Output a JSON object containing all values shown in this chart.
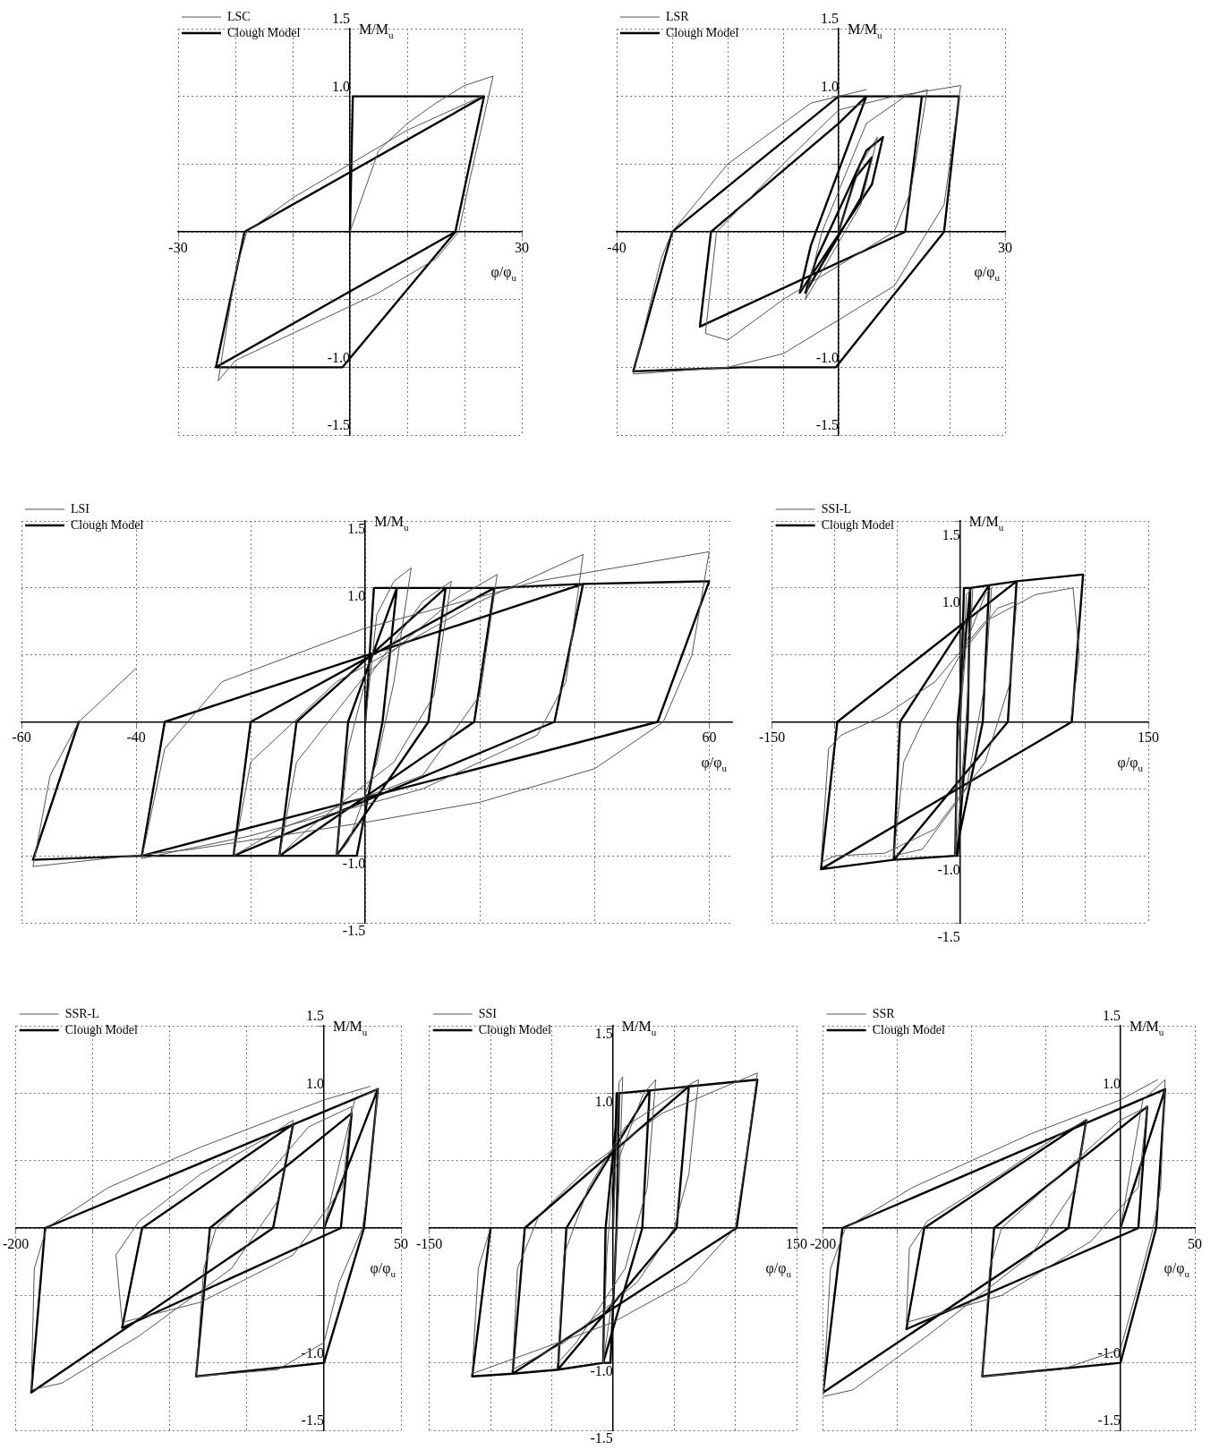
{
  "chart_data": [
    {
      "type": "line",
      "xlabel": "φ/φ$_{u}$",
      "ylabel": "M/M$_{u}$",
      "legend": "top left",
      "grid": true,
      "xlim": [
        -30,
        30
      ],
      "ylim": [
        -1.5,
        1.5
      ],
      "xticks": [
        {
          "value": -30,
          "label": "-30"
        },
        {
          "value": -20,
          "label": null
        },
        {
          "value": -10,
          "label": null
        },
        {
          "value": 0,
          "label": null
        },
        {
          "value": 10,
          "label": null
        },
        {
          "value": 20,
          "label": null
        },
        {
          "value": 30,
          "label": "30"
        }
      ],
      "yticks": [
        {
          "value": -1.5,
          "label": "-1.5"
        },
        {
          "value": -1,
          "label": "-1.0"
        },
        {
          "value": -0.5,
          "label": null
        },
        {
          "value": 0,
          "label": null
        },
        {
          "value": 0.5,
          "label": null
        },
        {
          "value": 1,
          "label": "1.0"
        },
        {
          "value": 1.5,
          "label": "1.5"
        }
      ],
      "series": [
        {
          "name": "LSC",
          "color": "#555555",
          "x": [
            0,
            5,
            10,
            15,
            20,
            25,
            21,
            19,
            15,
            5,
            0,
            -10,
            -20,
            -23,
            -20,
            -18,
            -10,
            0,
            10,
            23
          ],
          "values": [
            0,
            0.6,
            0.8,
            0.95,
            1.08,
            1.15,
            0.4,
            0,
            -0.2,
            -0.45,
            -0.55,
            -0.75,
            -0.95,
            -1.1,
            -0.3,
            0,
            0.25,
            0.5,
            0.75,
            1.0
          ]
        },
        {
          "name": "Clough Model",
          "color": "#000000",
          "x": [
            0,
            0.5,
            23.4,
            18.4,
            -1.3,
            -23.4,
            -18.4,
            23.4,
            18.4,
            -23.4
          ],
          "values": [
            0,
            1,
            1,
            0,
            -1,
            -1,
            0,
            1,
            0,
            -1
          ]
        }
      ]
    },
    {
      "type": "line",
      "xlabel": "φ/φ$_{u}$",
      "ylabel": "M/M$_{u}$",
      "legend": "top left",
      "grid": true,
      "xlim": [
        -40,
        30
      ],
      "ylim": [
        -1.5,
        1.5
      ],
      "xticks": [
        {
          "value": -40,
          "label": "-40"
        },
        {
          "value": -30,
          "label": null
        },
        {
          "value": -20,
          "label": null
        },
        {
          "value": -10,
          "label": null
        },
        {
          "value": 0,
          "label": null
        },
        {
          "value": 10,
          "label": null
        },
        {
          "value": 20,
          "label": null
        },
        {
          "value": 30,
          "label": "30"
        }
      ],
      "yticks": [
        {
          "value": -1.5,
          "label": "-1.5"
        },
        {
          "value": -1,
          "label": "-1.0"
        },
        {
          "value": -0.5,
          "label": null
        },
        {
          "value": 0,
          "label": null
        },
        {
          "value": 0.5,
          "label": null
        },
        {
          "value": 1,
          "label": "1.0"
        },
        {
          "value": 1.5,
          "label": "1.5"
        }
      ],
      "series": [
        {
          "name": "LSR",
          "color": "#555555",
          "x": [
            0,
            4,
            7,
            4,
            -6,
            -3,
            5,
            12,
            16,
            13,
            10,
            -10,
            -20,
            -24,
            -22,
            -10,
            0,
            10,
            22,
            19,
            10,
            -10,
            -20,
            -37,
            -32,
            -30,
            -20,
            -5,
            5
          ],
          "values": [
            0,
            0.5,
            0.7,
            0.2,
            -0.5,
            0,
            0.8,
            1,
            1.05,
            0.3,
            0,
            -0.5,
            -0.8,
            -0.75,
            0,
            0.5,
            0.9,
            1,
            1.08,
            0.2,
            -0.4,
            -0.9,
            -1,
            -1.05,
            -0.2,
            0,
            0.5,
            0.95,
            1.05
          ]
        },
        {
          "name": "Clough Model",
          "color": "#000000",
          "x": [
            0,
            3,
            6,
            4,
            -6,
            -4,
            5,
            8,
            6,
            -7,
            -5,
            5,
            15,
            12,
            -25,
            -23,
            0,
            5,
            21.7,
            19,
            -0.5,
            -17.5,
            -37,
            -30,
            0,
            21.7
          ],
          "values": [
            0,
            0.4,
            0.55,
            0.25,
            -0.45,
            -0.2,
            0.6,
            0.7,
            0.35,
            -0.45,
            -0.1,
            1,
            1,
            0,
            -0.7,
            0,
            0.8,
            1,
            1,
            0,
            -1,
            -1,
            -1.03,
            0,
            1,
            1
          ]
        }
      ]
    },
    {
      "type": "line",
      "xlabel": "φ/φ$_{u}$",
      "ylabel": "M/M$_{u}$",
      "legend": "top left",
      "grid": true,
      "xlim": [
        -60,
        64
      ],
      "ylim": [
        -1.5,
        1.5
      ],
      "xticks": [
        {
          "value": -60,
          "label": "-60"
        },
        {
          "value": -40,
          "label": "-40"
        },
        {
          "value": -20,
          "label": null
        },
        {
          "value": 0,
          "label": null
        },
        {
          "value": 20,
          "label": null
        },
        {
          "value": 40,
          "label": null
        },
        {
          "value": 60,
          "label": "60"
        }
      ],
      "yticks": [
        {
          "value": -1.5,
          "label": "-1.5"
        },
        {
          "value": -1,
          "label": "-1.0"
        },
        {
          "value": -0.5,
          "label": null
        },
        {
          "value": 0,
          "label": null
        },
        {
          "value": 0.5,
          "label": null
        },
        {
          "value": 1,
          "label": "1.0"
        },
        {
          "value": 1.5,
          "label": "1.5"
        }
      ],
      "series": [
        {
          "name": "LSI",
          "color": "#555555",
          "x": [
            0,
            2,
            5,
            8,
            5,
            2,
            -3,
            -5,
            -3,
            0,
            10,
            15,
            12,
            5,
            -10,
            -15,
            -12,
            0,
            15,
            23,
            20,
            10,
            -15,
            -23,
            -20,
            -5,
            20,
            38,
            35,
            30,
            10,
            -20,
            -39,
            -35,
            -25,
            0,
            30,
            60,
            57,
            52,
            40,
            20,
            0,
            -30,
            -58,
            -55,
            -50,
            -40
          ],
          "values": [
            0,
            0.8,
            1.05,
            1.15,
            0.3,
            -0.3,
            -0.9,
            -1,
            -0.2,
            0.3,
            0.9,
            1.05,
            0.2,
            -0.3,
            -0.8,
            -1,
            -0.3,
            0.35,
            0.9,
            1.1,
            0.2,
            -0.4,
            -0.8,
            -1,
            -0.3,
            0.3,
            0.9,
            1.25,
            0.3,
            -0.1,
            -0.5,
            -0.85,
            -1.02,
            -0.2,
            0.3,
            0.7,
            1.05,
            1.27,
            0.5,
            0,
            -0.35,
            -0.6,
            -0.75,
            -0.95,
            -1.08,
            -0.4,
            0,
            0.4
          ]
        },
        {
          "name": "Clough Model",
          "color": "#000000",
          "x": [
            0,
            1.5,
            5.5,
            3,
            -1.5,
            -5,
            -3,
            5.5,
            14,
            11,
            -5,
            -15,
            -12,
            14,
            22.5,
            19,
            -15,
            -23,
            -20,
            22.5,
            38,
            33,
            -23,
            -39,
            -35,
            38,
            60,
            51,
            -39,
            -58,
            -50
          ],
          "values": [
            0,
            1,
            1,
            0,
            -1,
            -1,
            0,
            1,
            1,
            0,
            -1,
            -1,
            0,
            1,
            1,
            0,
            -1,
            -1,
            0,
            1,
            1.03,
            0,
            -1,
            -1,
            0,
            1.03,
            1.05,
            0,
            -1,
            -1.03,
            0
          ]
        }
      ]
    },
    {
      "type": "line",
      "xlabel": "φ/φ$_{u}$",
      "ylabel": "M/M$_{u}$",
      "legend": "top left",
      "grid": true,
      "xlim": [
        -150,
        150
      ],
      "ylim": [
        -1.5,
        1.5
      ],
      "xticks": [
        {
          "value": -150,
          "label": "-150"
        },
        {
          "value": -100,
          "label": null
        },
        {
          "value": -50,
          "label": null
        },
        {
          "value": 0,
          "label": null
        },
        {
          "value": 50,
          "label": null
        },
        {
          "value": 100,
          "label": null
        },
        {
          "value": 150,
          "label": "150"
        }
      ],
      "yticks": [
        {
          "value": -1.5,
          "label": "-1.5"
        },
        {
          "value": -1,
          "label": "-1.0"
        },
        {
          "value": -0.5,
          "label": null
        },
        {
          "value": 0,
          "label": null
        },
        {
          "value": 0.5,
          "label": null
        },
        {
          "value": 1,
          "label": "1.0"
        },
        {
          "value": 1.5,
          "label": "1.5"
        }
      ],
      "series": [
        {
          "name": "SSI-L",
          "color": "#555555",
          "x": [
            0,
            5,
            10,
            6,
            0,
            -4,
            -2,
            5,
            20,
            25,
            20,
            5,
            -30,
            -53,
            -45,
            -30,
            0,
            30,
            45,
            40,
            20,
            -20,
            -60,
            -100,
            -111,
            -105,
            -95,
            -60,
            -20,
            20,
            60,
            90,
            95,
            88
          ],
          "values": [
            0,
            0.95,
            1,
            0.2,
            -0.6,
            -1,
            -0.2,
            0.6,
            0.95,
            1,
            0.3,
            -0.5,
            -0.95,
            -1,
            -0.3,
            0,
            0.5,
            0.85,
            0.9,
            0.3,
            -0.3,
            -0.8,
            -0.98,
            -1,
            -1.05,
            -0.2,
            -0.1,
            0.05,
            0.3,
            0.75,
            0.95,
            1,
            0.5,
            0
          ]
        },
        {
          "name": "Clough Model",
          "color": "#000000",
          "x": [
            0,
            3,
            8,
            6,
            -2,
            -4,
            -2,
            8,
            23,
            18,
            -4,
            -53,
            -48,
            23,
            45,
            38,
            -53,
            -111,
            -98,
            45,
            98,
            89,
            -111
          ],
          "values": [
            0,
            1,
            1,
            0,
            -1,
            -1,
            0,
            1,
            1.02,
            0,
            -1,
            -1.03,
            0,
            1.02,
            1.05,
            0,
            -1.03,
            -1.1,
            0,
            1.05,
            1.1,
            0,
            -1.1
          ]
        }
      ]
    },
    {
      "type": "line",
      "xlabel": "φ/φ$_{u}$",
      "ylabel": "M/M$_{u}$",
      "legend": "top left",
      "grid": true,
      "xlim": [
        -200,
        50
      ],
      "ylim": [
        -1.5,
        1.5
      ],
      "xticks": [
        {
          "value": -200,
          "label": "-200"
        },
        {
          "value": -150,
          "label": null
        },
        {
          "value": -100,
          "label": null
        },
        {
          "value": -50,
          "label": null
        },
        {
          "value": 0,
          "label": null
        },
        {
          "value": 50,
          "label": "50"
        }
      ],
      "yticks": [
        {
          "value": -1.5,
          "label": "-1.5"
        },
        {
          "value": -1,
          "label": "-1.0"
        },
        {
          "value": -0.5,
          "label": null
        },
        {
          "value": 0,
          "label": null
        },
        {
          "value": 0.5,
          "label": null
        },
        {
          "value": 1,
          "label": "1.0"
        },
        {
          "value": 1.5,
          "label": "1.5"
        }
      ],
      "series": [
        {
          "name": "SSR-L",
          "color": "#555555",
          "x": [
            0,
            20,
            35,
            30,
            25,
            10,
            0,
            -30,
            -83,
            -78,
            -70,
            -40,
            -10,
            18,
            12,
            -20,
            -80,
            -131,
            -135,
            -120,
            -80,
            -40,
            -20,
            -30,
            -60,
            -120,
            -170,
            -190,
            -188,
            -180,
            -140,
            -80,
            0,
            30
          ],
          "values": [
            0,
            0.95,
            1.03,
            0.4,
            0,
            -0.4,
            -0.85,
            -1.05,
            -1.1,
            -0.3,
            0,
            0.35,
            0.75,
            0.9,
            0.3,
            -0.2,
            -0.55,
            -0.7,
            -0.2,
            0.05,
            0.4,
            0.65,
            0.8,
            0.2,
            -0.3,
            -0.8,
            -1.15,
            -1.2,
            -0.3,
            0,
            0.3,
            0.6,
            0.95,
            1.05
          ]
        },
        {
          "name": "Clough Model",
          "color": "#000000",
          "x": [
            0,
            35,
            26,
            0,
            -83,
            -74,
            18,
            11,
            -131,
            -118,
            -20,
            -33,
            -190,
            -181,
            35
          ],
          "values": [
            0,
            1.03,
            0,
            -1,
            -1.1,
            0,
            0.85,
            0,
            -0.74,
            0,
            0.77,
            0,
            -1.22,
            0,
            1.03
          ]
        }
      ]
    },
    {
      "type": "line",
      "xlabel": "φ/φ$_{u}$",
      "ylabel": "M/M$_{u}$",
      "legend": "top left",
      "grid": true,
      "xlim": [
        -150,
        150
      ],
      "ylim": [
        -1.5,
        1.5
      ],
      "xticks": [
        {
          "value": -150,
          "label": "-150"
        },
        {
          "value": -100,
          "label": null
        },
        {
          "value": -50,
          "label": null
        },
        {
          "value": 0,
          "label": null
        },
        {
          "value": 50,
          "label": null
        },
        {
          "value": 100,
          "label": null
        },
        {
          "value": 150,
          "label": "150"
        }
      ],
      "yticks": [
        {
          "value": -1.5,
          "label": "-1.5"
        },
        {
          "value": -1,
          "label": "-1.0"
        },
        {
          "value": -0.5,
          "label": null
        },
        {
          "value": 0,
          "label": null
        },
        {
          "value": 0.5,
          "label": null
        },
        {
          "value": 1,
          "label": "1.0"
        },
        {
          "value": 1.5,
          "label": "1.5"
        }
      ],
      "series": [
        {
          "name": "SSI",
          "color": "#555555",
          "x": [
            0,
            5,
            8,
            5,
            0,
            -8,
            -5,
            0,
            25,
            35,
            28,
            10,
            -30,
            -45,
            -40,
            -20,
            10,
            60,
            70,
            62,
            50,
            20,
            -40,
            -82,
            -78,
            -60,
            -20,
            40,
            118,
            110,
            100,
            60,
            0,
            -60,
            -115,
            -110,
            -100
          ],
          "values": [
            0,
            1.08,
            1.12,
            0.3,
            -0.5,
            -1,
            -0.2,
            0.4,
            1,
            1.1,
            0.3,
            -0.3,
            -0.85,
            -1,
            -0.2,
            0.3,
            0.75,
            1.05,
            1.1,
            0.4,
            0,
            -0.4,
            -0.85,
            -1.05,
            -0.3,
            0.1,
            0.45,
            0.85,
            1.15,
            0.6,
            0,
            -0.4,
            -0.7,
            -0.9,
            -1.08,
            -0.3,
            0
          ]
        },
        {
          "name": "Clough Model",
          "color": "#000000",
          "x": [
            0,
            3,
            5,
            3,
            -2,
            -8,
            -6,
            5,
            30,
            24,
            -8,
            -45,
            -38,
            30,
            62,
            52,
            -45,
            -82,
            -72,
            62,
            118,
            101,
            -82,
            -115,
            -100
          ],
          "values": [
            0,
            1,
            1,
            0,
            -1,
            -1,
            0,
            1,
            1.02,
            0,
            -1,
            -1.05,
            0,
            1.02,
            1.05,
            0,
            -1.05,
            -1.08,
            0,
            1.05,
            1.1,
            0,
            -1.08,
            -1.1,
            0
          ]
        }
      ]
    },
    {
      "type": "line",
      "xlabel": "φ/φ$_{u}$",
      "ylabel": "M/M$_{u}$",
      "legend": "top left",
      "grid": true,
      "xlim": [
        -200,
        50
      ],
      "ylim": [
        -1.5,
        1.5
      ],
      "xticks": [
        {
          "value": -200,
          "label": "-200"
        },
        {
          "value": -150,
          "label": null
        },
        {
          "value": -100,
          "label": null
        },
        {
          "value": -50,
          "label": null
        },
        {
          "value": 0,
          "label": null
        },
        {
          "value": 50,
          "label": "50"
        }
      ],
      "yticks": [
        {
          "value": -1.5,
          "label": "-1.5"
        },
        {
          "value": -1,
          "label": "-1.0"
        },
        {
          "value": -0.5,
          "label": null
        },
        {
          "value": 0,
          "label": null
        },
        {
          "value": 0.5,
          "label": null
        },
        {
          "value": 1,
          "label": "1.0"
        },
        {
          "value": 1.5,
          "label": "1.5"
        }
      ],
      "series": [
        {
          "name": "SSR",
          "color": "#555555",
          "x": [
            0,
            15,
            30,
            27,
            22,
            10,
            0,
            -40,
            -93,
            -88,
            -80,
            -40,
            0,
            18,
            12,
            -20,
            -80,
            -144,
            -142,
            -130,
            -80,
            -40,
            -23,
            -30,
            -60,
            -130,
            -180,
            -200,
            -195,
            -185,
            -140,
            -60,
            0,
            25
          ],
          "values": [
            0,
            0.95,
            1.1,
            0.3,
            0,
            -0.5,
            -0.9,
            -1.05,
            -1.1,
            -0.3,
            0,
            0.4,
            0.8,
            0.9,
            0.3,
            -0.1,
            -0.5,
            -0.7,
            -0.15,
            0.05,
            0.4,
            0.7,
            0.8,
            0.3,
            -0.2,
            -0.8,
            -1.2,
            -1.25,
            -0.3,
            0,
            0.3,
            0.7,
            0.95,
            1.1
          ]
        },
        {
          "name": "Clough Model",
          "color": "#000000",
          "x": [
            0,
            30,
            24,
            0,
            -93,
            -85,
            18,
            12,
            -144,
            -132,
            -23,
            -35,
            -200,
            -187,
            30
          ],
          "values": [
            0,
            1.03,
            0,
            -1,
            -1.1,
            0,
            0.9,
            0,
            -0.75,
            0,
            0.8,
            0,
            -1.22,
            0,
            1.03
          ]
        }
      ]
    }
  ]
}
